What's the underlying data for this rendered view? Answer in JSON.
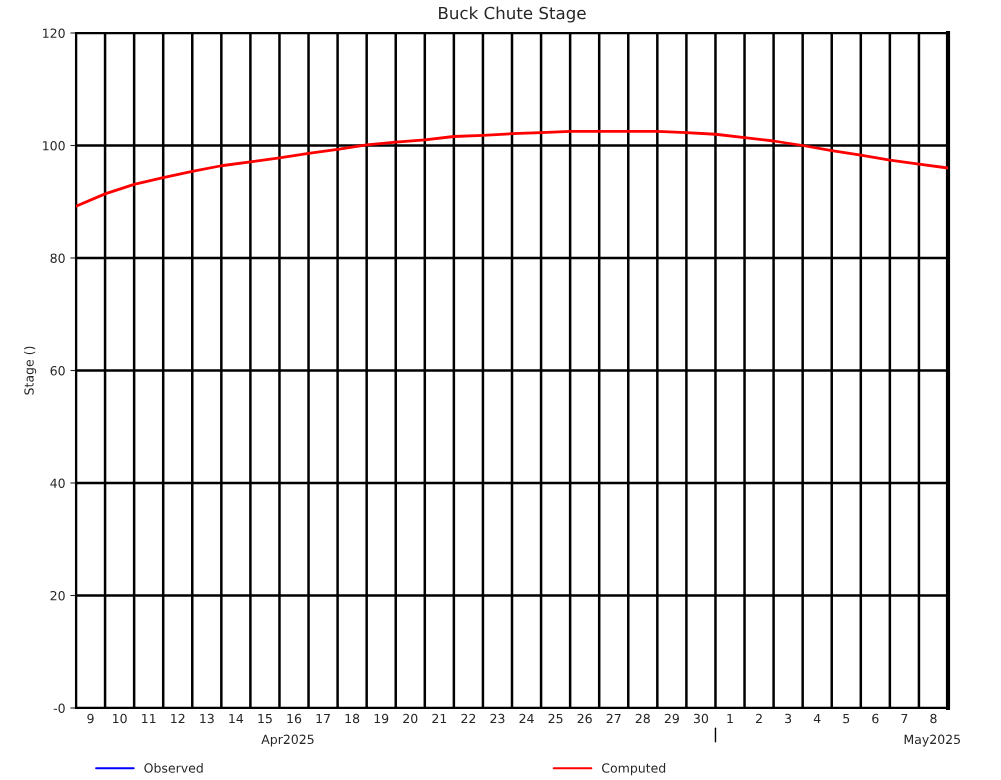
{
  "chart_data": {
    "type": "line",
    "title": "Buck Chute Stage",
    "ylabel": "Stage ()",
    "x": [
      "2025-04-09",
      "2025-04-10",
      "2025-04-11",
      "2025-04-12",
      "2025-04-13",
      "2025-04-14",
      "2025-04-15",
      "2025-04-16",
      "2025-04-17",
      "2025-04-18",
      "2025-04-19",
      "2025-04-20",
      "2025-04-21",
      "2025-04-22",
      "2025-04-23",
      "2025-04-24",
      "2025-04-25",
      "2025-04-26",
      "2025-04-27",
      "2025-04-28",
      "2025-04-29",
      "2025-04-30",
      "2025-05-01",
      "2025-05-02",
      "2025-05-03",
      "2025-05-04",
      "2025-05-05",
      "2025-05-06",
      "2025-05-07",
      "2025-05-08",
      "2025-05-09"
    ],
    "series": [
      {
        "name": "Observed",
        "color": "#0000ff",
        "values": [
          null,
          null,
          null,
          null,
          null,
          null,
          null,
          null,
          null,
          null,
          null,
          null,
          null,
          null,
          null,
          null,
          null,
          null,
          null,
          null,
          null,
          null,
          null,
          null,
          null,
          null,
          null,
          null,
          null,
          null,
          null
        ]
      },
      {
        "name": "Computed",
        "color": "#ff0000",
        "values": [
          89.2,
          91.4,
          93.1,
          94.3,
          95.4,
          96.4,
          97.1,
          97.8,
          98.6,
          99.3,
          100.1,
          100.6,
          101.0,
          101.6,
          101.8,
          102.1,
          102.3,
          102.5,
          102.5,
          102.5,
          102.5,
          102.3,
          102.0,
          101.4,
          100.8,
          100.0,
          99.1,
          98.3,
          97.4,
          96.7,
          96.0
        ]
      }
    ],
    "xlim": [
      "2025-04-09",
      "2025-05-09"
    ],
    "xticks": [
      {
        "value": "2025-04-09",
        "label": null
      },
      {
        "value": "2025-04-09T12:00",
        "label": "9"
      },
      {
        "value": "2025-04-10",
        "label": null
      },
      {
        "value": "2025-04-10T12:00",
        "label": "10"
      },
      {
        "value": "2025-04-11",
        "label": null
      },
      {
        "value": "2025-04-11T12:00",
        "label": "11"
      },
      {
        "value": "2025-04-12",
        "label": null
      },
      {
        "value": "2025-04-12T12:00",
        "label": "12"
      },
      {
        "value": "2025-04-13",
        "label": null
      },
      {
        "value": "2025-04-13T12:00",
        "label": "13"
      },
      {
        "value": "2025-04-14",
        "label": null
      },
      {
        "value": "2025-04-14T12:00",
        "label": "14"
      },
      {
        "value": "2025-04-15",
        "label": null
      },
      {
        "value": "2025-04-15T12:00",
        "label": "15"
      },
      {
        "value": "2025-04-16",
        "label": null
      },
      {
        "value": "2025-04-16T12:00",
        "label": "16"
      },
      {
        "value": "2025-04-17",
        "label": null
      },
      {
        "value": "2025-04-17T12:00",
        "label": "17"
      },
      {
        "value": "2025-04-18",
        "label": null
      },
      {
        "value": "2025-04-18T12:00",
        "label": "18"
      },
      {
        "value": "2025-04-19",
        "label": null
      },
      {
        "value": "2025-04-19T12:00",
        "label": "19"
      },
      {
        "value": "2025-04-20",
        "label": null
      },
      {
        "value": "2025-04-20T12:00",
        "label": "20"
      },
      {
        "value": "2025-04-21",
        "label": null
      },
      {
        "value": "2025-04-21T12:00",
        "label": "21"
      },
      {
        "value": "2025-04-22",
        "label": null
      },
      {
        "value": "2025-04-22T12:00",
        "label": "22"
      },
      {
        "value": "2025-04-23",
        "label": null
      },
      {
        "value": "2025-04-23T12:00",
        "label": "23"
      },
      {
        "value": "2025-04-24",
        "label": null
      },
      {
        "value": "2025-04-24T12:00",
        "label": "24"
      },
      {
        "value": "2025-04-25",
        "label": null
      },
      {
        "value": "2025-04-25T12:00",
        "label": "25"
      },
      {
        "value": "2025-04-26",
        "label": null
      },
      {
        "value": "2025-04-26T12:00",
        "label": "26"
      },
      {
        "value": "2025-04-27",
        "label": null
      },
      {
        "value": "2025-04-27T12:00",
        "label": "27"
      },
      {
        "value": "2025-04-28",
        "label": null
      },
      {
        "value": "2025-04-28T12:00",
        "label": "28"
      },
      {
        "value": "2025-04-29",
        "label": null
      },
      {
        "value": "2025-04-29T12:00",
        "label": "29"
      },
      {
        "value": "2025-04-30",
        "label": null
      },
      {
        "value": "2025-04-30T12:00",
        "label": "30"
      },
      {
        "value": "2025-05-01",
        "label": null
      },
      {
        "value": "2025-05-01T12:00",
        "label": "1"
      },
      {
        "value": "2025-05-02",
        "label": null
      },
      {
        "value": "2025-05-02T12:00",
        "label": "2"
      },
      {
        "value": "2025-05-03",
        "label": null
      },
      {
        "value": "2025-05-03T12:00",
        "label": "3"
      },
      {
        "value": "2025-05-04",
        "label": null
      },
      {
        "value": "2025-05-04T12:00",
        "label": "4"
      },
      {
        "value": "2025-05-05",
        "label": null
      },
      {
        "value": "2025-05-05T12:00",
        "label": "5"
      },
      {
        "value": "2025-05-06",
        "label": null
      },
      {
        "value": "2025-05-06T12:00",
        "label": "6"
      },
      {
        "value": "2025-05-07",
        "label": null
      },
      {
        "value": "2025-05-07T12:00",
        "label": "7"
      },
      {
        "value": "2025-05-08",
        "label": null
      },
      {
        "value": "2025-05-08T12:00",
        "label": "8"
      },
      {
        "value": "2025-05-09",
        "label": null
      }
    ],
    "ylim": [
      0,
      120
    ],
    "yticks": [
      {
        "value": 0,
        "label": "-0"
      },
      20,
      40,
      60,
      80,
      100,
      120
    ],
    "x2lim": [
      "2025-04-09",
      "2025-05-09"
    ],
    "x2ticks": [
      {
        "value": "2025-04-16T07:00",
        "label": "Apr2025"
      },
      {
        "value": "2025-05-01",
        "label": null
      },
      {
        "value": "2025-05-08T11:00",
        "label": "May2025"
      }
    ],
    "grid": true,
    "legend": "bottom",
    "marker": "none",
    "line_style": "solid"
  }
}
